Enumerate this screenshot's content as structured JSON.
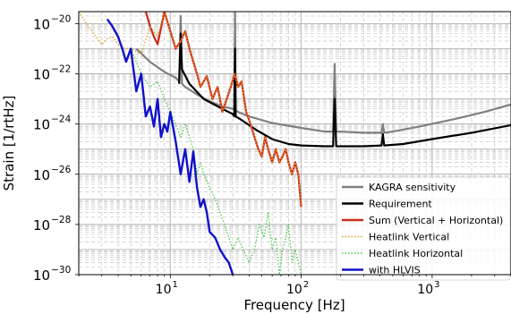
{
  "chart_data": {
    "type": "line",
    "xlabel": "Frequency [Hz]",
    "ylabel": "Strain [1/rtHz]",
    "x_scale": "log",
    "y_scale": "log",
    "xlim": [
      2,
      4000
    ],
    "ylim": [
      1e-30,
      3e-20
    ],
    "grid": true,
    "legend_position": "bottom-right",
    "x_ticks": [
      {
        "value": 10,
        "base": "10",
        "exp": "1"
      },
      {
        "value": 100,
        "base": "10",
        "exp": "2"
      },
      {
        "value": 1000,
        "base": "10",
        "exp": "3"
      }
    ],
    "y_ticks": [
      {
        "value": 1e-20,
        "base": "10",
        "exp": "−20"
      },
      {
        "value": 1e-22,
        "base": "10",
        "exp": "−22"
      },
      {
        "value": 1e-24,
        "base": "10",
        "exp": "−24"
      },
      {
        "value": 1e-26,
        "base": "10",
        "exp": "−26"
      },
      {
        "value": 1e-28,
        "base": "10",
        "exp": "−28"
      },
      {
        "value": 1e-30,
        "base": "10",
        "exp": "−30"
      }
    ],
    "series": [
      {
        "name": "KAGRA sensitivity",
        "color": "#808080",
        "style": "solid",
        "x": [
          5.5,
          7,
          9,
          11,
          11.7,
          12,
          12.3,
          13,
          16,
          20,
          25,
          30,
          30.8,
          31.2,
          31.6,
          33,
          40,
          60,
          100,
          150,
          175,
          180,
          185,
          200,
          300,
          400,
          410,
          420,
          430,
          500,
          800,
          1500,
          2500,
          4000
        ],
        "y": [
          1e-21,
          3e-22,
          1.2e-22,
          7e-23,
          5e-23,
          2e-20,
          4e-23,
          3e-23,
          1.5e-23,
          8e-24,
          5e-24,
          4e-24,
          3.5e-24,
          4e-20,
          3.5e-24,
          3e-24,
          2e-24,
          1.1e-24,
          7e-25,
          5e-25,
          5e-25,
          2.5e-22,
          5e-25,
          5e-25,
          4.5e-25,
          4.5e-25,
          4.5e-25,
          1e-24,
          4.5e-25,
          5e-25,
          8e-25,
          1.6e-24,
          3e-24,
          6e-24
        ]
      },
      {
        "name": "Requirement",
        "color": "#000000",
        "style": "solid",
        "x": [
          11.7,
          12,
          12.3,
          14,
          18,
          25,
          30,
          30.8,
          31.2,
          31.6,
          34,
          45,
          60,
          80,
          100,
          150,
          175,
          180,
          185,
          200,
          300,
          410,
          420,
          430,
          600,
          1000,
          2000,
          4000
        ],
        "y": [
          4e-23,
          4e-21,
          1.5e-22,
          4e-23,
          1e-23,
          4e-24,
          2.5e-24,
          2e-24,
          1e-21,
          2e-24,
          1.6e-24,
          6e-25,
          2.5e-25,
          1.6e-25,
          1.4e-25,
          1.3e-25,
          1.3e-25,
          1e-23,
          1.3e-25,
          1.3e-25,
          1.3e-25,
          1.4e-25,
          4e-25,
          1.4e-25,
          1.6e-25,
          2.5e-25,
          4.5e-25,
          9e-25
        ]
      },
      {
        "name": "Sum (Vertical + Horizontal)",
        "color": "#cc2a1a",
        "style": "solid",
        "x": [
          6.5,
          7,
          7.5,
          8,
          9,
          10,
          11,
          12,
          13,
          14,
          15,
          16,
          17,
          19,
          21,
          23,
          25,
          27,
          29,
          31,
          33,
          35,
          38,
          41,
          44,
          47,
          50,
          53,
          56,
          60,
          64,
          68,
          72,
          76,
          80,
          85,
          90,
          95,
          100
        ],
        "y": [
          3e-20,
          8e-21,
          3e-21,
          1.5e-21,
          3e-20,
          5e-21,
          1e-21,
          2e-21,
          5e-21,
          1e-21,
          3e-22,
          1e-22,
          3e-23,
          8e-23,
          1e-23,
          3e-23,
          3e-24,
          1e-23,
          3e-23,
          1e-22,
          3e-23,
          5e-23,
          3e-24,
          1e-24,
          3e-25,
          1e-25,
          5e-26,
          3e-25,
          1e-25,
          3e-26,
          1e-25,
          3e-26,
          5e-26,
          1e-25,
          3e-26,
          1e-26,
          3e-26,
          1e-26,
          5e-28
        ]
      },
      {
        "name": "Heatlink Vertical",
        "color": "#e0a020",
        "style": "dotted",
        "x": [
          2,
          2.3,
          2.7,
          3,
          3.3,
          3.6,
          4,
          4.5,
          5,
          6,
          7,
          8,
          9,
          10,
          11,
          12,
          13,
          14,
          15,
          16,
          17,
          19,
          21,
          23,
          25,
          27,
          29,
          31,
          33,
          35,
          38,
          41,
          44,
          47,
          50,
          53,
          56,
          60,
          64,
          68,
          72,
          76,
          80,
          85,
          90,
          95,
          100
        ],
        "y": [
          3e-20,
          1e-20,
          3e-21,
          1.5e-21,
          2.5e-21,
          3e-21,
          1.5e-21,
          1e-21,
          1e-21,
          6e-22,
          8e-21,
          3e-21,
          3e-20,
          5e-21,
          1e-21,
          2e-21,
          5e-21,
          1e-21,
          3e-22,
          1e-22,
          3e-23,
          8e-23,
          1e-23,
          3e-23,
          3e-24,
          1e-23,
          3e-23,
          1e-22,
          3e-23,
          5e-23,
          3e-24,
          1e-24,
          3e-25,
          1e-25,
          5e-26,
          3e-25,
          1e-25,
          3e-26,
          1e-25,
          3e-26,
          5e-26,
          1e-25,
          3e-26,
          1e-26,
          3e-26,
          1e-26,
          5e-28
        ]
      },
      {
        "name": "Heatlink Horizontal",
        "color": "#44cc44",
        "style": "dotted",
        "x": [
          5,
          6,
          7,
          8,
          9,
          10,
          11,
          12,
          13,
          14,
          15,
          16,
          17,
          18,
          20,
          22,
          24,
          26,
          28,
          30,
          33,
          36,
          40,
          44,
          48,
          52,
          56,
          60,
          64,
          68,
          72,
          76,
          80,
          85,
          90,
          95,
          100
        ],
        "y": [
          1e-21,
          1e-22,
          3e-23,
          5e-23,
          1e-23,
          3e-24,
          1e-24,
          3e-25,
          1e-24,
          3e-25,
          1e-25,
          1e-26,
          3e-26,
          1e-26,
          3e-27,
          1e-27,
          3e-28,
          1e-28,
          3e-29,
          1e-29,
          3e-29,
          1e-29,
          3e-30,
          1e-29,
          1e-28,
          3e-29,
          3e-28,
          1e-29,
          3e-29,
          1e-30,
          1e-29,
          3e-29,
          1e-28,
          3e-30,
          1e-29,
          3e-30,
          1e-30
        ]
      },
      {
        "name": "with HLVIS",
        "color": "#1010cc",
        "style": "solid",
        "x": [
          3.3,
          3.6,
          4,
          4.3,
          4.6,
          5,
          5.5,
          6,
          6.5,
          7,
          7.5,
          8,
          8.5,
          9,
          9.5,
          10,
          11,
          12,
          13,
          14,
          15,
          16,
          17,
          18,
          19,
          20,
          22,
          24,
          26,
          28,
          30
        ],
        "y": [
          1.5e-20,
          8e-21,
          3e-21,
          1e-21,
          3e-22,
          1e-21,
          2e-23,
          1e-22,
          2e-24,
          5e-24,
          8e-25,
          1e-23,
          3e-25,
          1e-24,
          5e-25,
          3e-24,
          2e-25,
          1e-26,
          1e-25,
          5e-27,
          8e-26,
          3e-27,
          5e-28,
          1e-27,
          3e-28,
          5e-29,
          3e-29,
          1e-29,
          5e-30,
          3e-30,
          1e-30
        ]
      }
    ]
  }
}
